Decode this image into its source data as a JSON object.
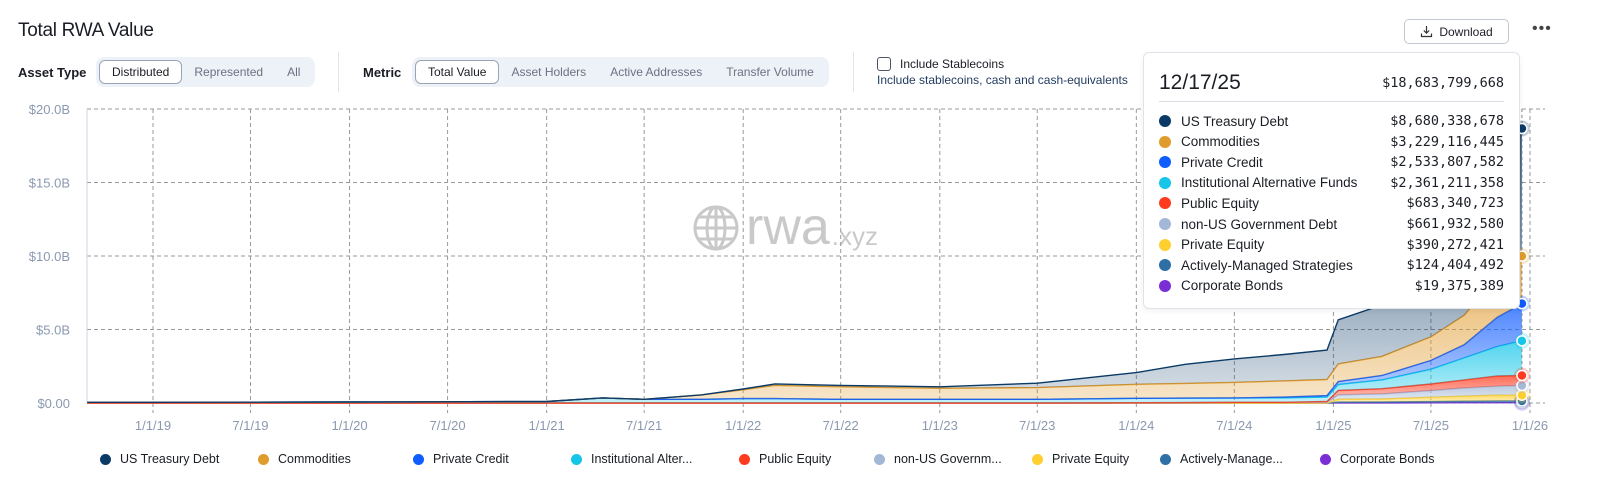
{
  "header": {
    "title": "Total RWA Value",
    "download_label": "Download",
    "more_label": "•••"
  },
  "asset_type": {
    "label": "Asset Type",
    "options": [
      "Distributed",
      "Represented",
      "All"
    ],
    "selected": "Distributed"
  },
  "metric": {
    "label": "Metric",
    "options": [
      "Total Value",
      "Asset Holders",
      "Active Addresses",
      "Transfer Volume"
    ],
    "selected": "Total Value"
  },
  "stablecoins": {
    "label": "Include Stablecoins",
    "sublabel": "Include stablecoins, cash and cash-equivalents",
    "checked": false
  },
  "watermark": {
    "main": "rwa",
    "suffix": ".xyz"
  },
  "tooltip": {
    "date": "12/17/25",
    "total": "$18,683,799,668",
    "rows": [
      {
        "name": "US Treasury Debt",
        "value": "$8,680,338,678"
      },
      {
        "name": "Commodities",
        "value": "$3,229,116,445"
      },
      {
        "name": "Private Credit",
        "value": "$2,533,807,582"
      },
      {
        "name": "Institutional Alternative Funds",
        "value": "$2,361,211,358"
      },
      {
        "name": "Public Equity",
        "value": "$683,340,723"
      },
      {
        "name": "non-US Government Debt",
        "value": "$661,932,580"
      },
      {
        "name": "Private Equity",
        "value": "$390,272,421"
      },
      {
        "name": "Actively-Managed Strategies",
        "value": "$124,404,492"
      },
      {
        "name": "Corporate Bonds",
        "value": "$19,375,389"
      }
    ]
  },
  "legend": [
    "US Treasury Debt",
    "Commodities",
    "Private Credit",
    "Institutional Alter...",
    "Public Equity",
    "non-US Governm...",
    "Private Equity",
    "Actively-Manage...",
    "Corporate Bonds"
  ],
  "chart_data": {
    "type": "area",
    "stacked": true,
    "grid": true,
    "legend_position": "bottom",
    "ylim": [
      0,
      20
    ],
    "yunit": "B USD",
    "yticks": [
      "$0.00",
      "$5.0B",
      "$10.0B",
      "$15.0B",
      "$20.0B"
    ],
    "xticks": [
      "1/1/19",
      "7/1/19",
      "1/1/20",
      "7/1/20",
      "1/1/21",
      "7/1/21",
      "1/1/22",
      "7/1/22",
      "1/1/23",
      "7/1/23",
      "1/1/24",
      "7/1/24",
      "1/1/25",
      "7/1/25",
      "1/1/26"
    ],
    "x": [
      "2018-09-01",
      "2019-01-01",
      "2020-01-01",
      "2021-01-01",
      "2021-04-15",
      "2021-07-01",
      "2021-10-15",
      "2022-01-01",
      "2022-03-01",
      "2022-07-01",
      "2023-01-01",
      "2023-07-01",
      "2024-01-01",
      "2024-04-01",
      "2024-07-01",
      "2024-10-01",
      "2024-12-20",
      "2025-01-10",
      "2025-04-01",
      "2025-07-01",
      "2025-09-01",
      "2025-11-01",
      "2025-12-17"
    ],
    "series": [
      {
        "name": "US Treasury Debt",
        "color": "#0b3a66",
        "values": [
          0,
          0,
          0,
          0,
          0,
          0,
          0,
          0.05,
          0.1,
          0.1,
          0.1,
          0.3,
          0.8,
          1.3,
          1.6,
          1.8,
          2.0,
          3.0,
          3.5,
          4.5,
          5.5,
          7.5,
          8.68
        ]
      },
      {
        "name": "Commodities",
        "color": "#e09b2d",
        "values": [
          0,
          0,
          0,
          0,
          0,
          0,
          0.3,
          0.6,
          0.9,
          0.85,
          0.75,
          0.8,
          0.95,
          1.0,
          1.05,
          1.1,
          1.1,
          1.2,
          1.3,
          1.6,
          2.0,
          2.8,
          3.23
        ]
      },
      {
        "name": "Private Credit",
        "color": "#0f5cff",
        "values": [
          0,
          0,
          0,
          0,
          0,
          0,
          0,
          0,
          0,
          0,
          0,
          0,
          0,
          0,
          0,
          0.05,
          0.1,
          0.2,
          0.3,
          0.6,
          0.9,
          2.0,
          2.53
        ]
      },
      {
        "name": "Institutional Alternative Funds",
        "color": "#16c6e8",
        "values": [
          0.05,
          0.05,
          0.07,
          0.1,
          0.35,
          0.25,
          0.25,
          0.3,
          0.3,
          0.25,
          0.25,
          0.25,
          0.3,
          0.3,
          0.3,
          0.3,
          0.3,
          0.4,
          0.6,
          1.0,
          1.5,
          2.0,
          2.36
        ]
      },
      {
        "name": "Public Equity",
        "color": "#ff3b1f",
        "values": [
          0,
          0,
          0,
          0,
          0,
          0,
          0,
          0,
          0,
          0,
          0,
          0,
          0,
          0,
          0,
          0,
          0.05,
          0.3,
          0.35,
          0.45,
          0.55,
          0.7,
          0.68
        ]
      },
      {
        "name": "non-US Government Debt",
        "color": "#a3b8d6",
        "values": [
          0,
          0,
          0,
          0,
          0,
          0,
          0,
          0,
          0,
          0,
          0,
          0,
          0.02,
          0.03,
          0.05,
          0.05,
          0.05,
          0.3,
          0.35,
          0.45,
          0.55,
          0.6,
          0.66
        ]
      },
      {
        "name": "Private Equity",
        "color": "#ffcf2e",
        "values": [
          0,
          0,
          0,
          0,
          0,
          0,
          0,
          0,
          0,
          0,
          0,
          0,
          0,
          0,
          0,
          0,
          0,
          0.2,
          0.2,
          0.3,
          0.35,
          0.4,
          0.39
        ]
      },
      {
        "name": "Actively-Managed Strategies",
        "color": "#2e6fa6",
        "values": [
          0,
          0,
          0,
          0,
          0,
          0,
          0,
          0,
          0,
          0,
          0,
          0,
          0,
          0,
          0,
          0,
          0,
          0.05,
          0.06,
          0.08,
          0.1,
          0.12,
          0.12
        ]
      },
      {
        "name": "Corporate Bonds",
        "color": "#7a2fd6",
        "values": [
          0,
          0,
          0,
          0,
          0,
          0,
          0,
          0,
          0,
          0,
          0,
          0,
          0,
          0,
          0,
          0,
          0,
          0.01,
          0.01,
          0.015,
          0.02,
          0.02,
          0.02
        ]
      }
    ]
  }
}
